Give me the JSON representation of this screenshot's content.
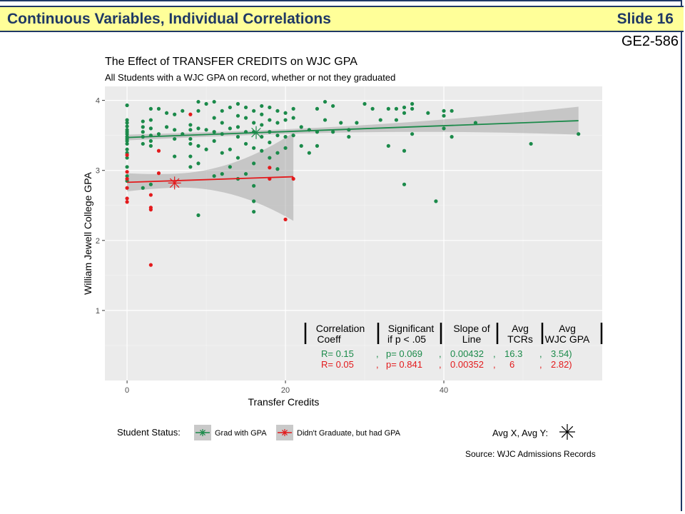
{
  "slide": {
    "title": "Continuous Variables, Individual Correlations",
    "number": "Slide 16",
    "code": "GE2-586"
  },
  "colors": {
    "banner": "#ffff99",
    "banner_text": "#1f3864",
    "grad": "#1b8a4a",
    "nongrad": "#e31a1c",
    "panel": "#ebebeb"
  },
  "chart_data": {
    "type": "scatter",
    "title": "The Effect of TRANSFER CREDITS on WJC GPA",
    "subtitle": "All Students with a WJC GPA on record, whether or not they graduated",
    "xlabel": "Transfer Credits",
    "ylabel": "William Jewell College GPA",
    "xlim": [
      -2.8,
      60
    ],
    "ylim": [
      0.0,
      4.2
    ],
    "xticks": [
      0,
      20,
      40
    ],
    "yticks": [
      1,
      2,
      3,
      4
    ],
    "grid": true,
    "legend_title": "Student Status:",
    "legend_position": "bottom",
    "series": [
      {
        "name": "Grad with GPA",
        "color": "#1b8a4a",
        "points": [
          [
            0,
            3.93
          ],
          [
            0,
            3.72
          ],
          [
            0,
            3.68
          ],
          [
            0,
            3.63
          ],
          [
            0,
            3.58
          ],
          [
            0,
            3.55
          ],
          [
            0,
            3.52
          ],
          [
            0,
            3.48
          ],
          [
            0,
            3.45
          ],
          [
            0,
            3.42
          ],
          [
            0,
            3.38
          ],
          [
            0,
            3.3
          ],
          [
            0,
            3.25
          ],
          [
            0,
            3.18
          ],
          [
            0,
            3.05
          ],
          [
            0,
            2.92
          ],
          [
            0,
            2.85
          ],
          [
            2,
            3.7
          ],
          [
            2,
            3.62
          ],
          [
            2,
            3.55
          ],
          [
            2,
            3.48
          ],
          [
            2,
            3.38
          ],
          [
            2,
            2.75
          ],
          [
            3,
            3.88
          ],
          [
            3,
            3.72
          ],
          [
            3,
            3.6
          ],
          [
            3,
            3.5
          ],
          [
            3,
            3.42
          ],
          [
            3,
            3.35
          ],
          [
            3,
            2.8
          ],
          [
            4,
            3.88
          ],
          [
            4,
            3.52
          ],
          [
            5,
            3.82
          ],
          [
            5,
            3.62
          ],
          [
            6,
            3.8
          ],
          [
            6,
            3.58
          ],
          [
            6,
            3.45
          ],
          [
            6,
            3.2
          ],
          [
            7,
            3.85
          ],
          [
            7,
            3.52
          ],
          [
            8,
            3.65
          ],
          [
            8,
            3.58
          ],
          [
            8,
            3.45
          ],
          [
            8,
            3.38
          ],
          [
            8,
            3.2
          ],
          [
            8,
            3.05
          ],
          [
            9,
            3.98
          ],
          [
            9,
            3.85
          ],
          [
            9,
            3.6
          ],
          [
            9,
            3.35
          ],
          [
            9,
            3.1
          ],
          [
            10,
            3.95
          ],
          [
            10,
            3.58
          ],
          [
            10,
            3.3
          ],
          [
            11,
            3.98
          ],
          [
            11,
            3.75
          ],
          [
            11,
            3.55
          ],
          [
            11,
            3.42
          ],
          [
            11,
            2.92
          ],
          [
            12,
            3.85
          ],
          [
            12,
            3.68
          ],
          [
            12,
            3.52
          ],
          [
            12,
            3.25
          ],
          [
            12,
            2.95
          ],
          [
            13,
            3.9
          ],
          [
            13,
            3.6
          ],
          [
            13,
            3.3
          ],
          [
            13,
            3.05
          ],
          [
            14,
            3.95
          ],
          [
            14,
            3.78
          ],
          [
            14,
            3.62
          ],
          [
            14,
            3.48
          ],
          [
            14,
            3.18
          ],
          [
            14,
            2.88
          ],
          [
            15,
            3.9
          ],
          [
            15,
            3.75
          ],
          [
            15,
            3.55
          ],
          [
            15,
            3.38
          ],
          [
            15,
            2.95
          ],
          [
            16,
            3.85
          ],
          [
            16,
            3.68
          ],
          [
            16,
            3.55
          ],
          [
            16,
            3.32
          ],
          [
            16,
            3.1
          ],
          [
            16,
            2.78
          ],
          [
            17,
            3.92
          ],
          [
            17,
            3.8
          ],
          [
            17,
            3.65
          ],
          [
            17,
            3.48
          ],
          [
            17,
            3.28
          ],
          [
            18,
            3.9
          ],
          [
            18,
            3.72
          ],
          [
            18,
            3.55
          ],
          [
            18,
            3.4
          ],
          [
            18,
            3.18
          ],
          [
            19,
            3.85
          ],
          [
            19,
            3.68
          ],
          [
            19,
            3.5
          ],
          [
            19,
            3.25
          ],
          [
            19,
            3.02
          ],
          [
            20,
            3.82
          ],
          [
            20,
            3.72
          ],
          [
            20,
            3.48
          ],
          [
            20,
            3.32
          ],
          [
            21,
            3.88
          ],
          [
            21,
            3.75
          ],
          [
            21,
            3.5
          ],
          [
            9,
            2.36
          ],
          [
            16,
            2.56
          ],
          [
            16,
            2.41
          ],
          [
            22,
            3.62
          ],
          [
            22,
            3.35
          ],
          [
            23,
            3.58
          ],
          [
            23,
            3.25
          ],
          [
            24,
            3.88
          ],
          [
            24,
            3.55
          ],
          [
            24,
            3.35
          ],
          [
            25,
            3.98
          ],
          [
            25,
            3.72
          ],
          [
            26,
            3.92
          ],
          [
            26,
            3.55
          ],
          [
            27,
            3.68
          ],
          [
            28,
            3.58
          ],
          [
            28,
            3.48
          ],
          [
            29,
            3.68
          ],
          [
            30,
            3.95
          ],
          [
            31,
            3.88
          ],
          [
            32,
            3.72
          ],
          [
            33,
            3.88
          ],
          [
            33,
            3.35
          ],
          [
            34,
            3.88
          ],
          [
            34,
            3.72
          ],
          [
            35,
            3.9
          ],
          [
            35,
            3.82
          ],
          [
            35,
            3.28
          ],
          [
            35,
            2.8
          ],
          [
            36,
            3.95
          ],
          [
            36,
            3.88
          ],
          [
            36,
            3.52
          ],
          [
            38,
            3.82
          ],
          [
            39,
            2.56
          ],
          [
            40,
            3.85
          ],
          [
            40,
            3.78
          ],
          [
            40,
            3.6
          ],
          [
            41,
            3.48
          ],
          [
            41,
            3.85
          ],
          [
            44,
            3.68
          ],
          [
            51,
            3.38
          ],
          [
            57,
            3.52
          ]
        ],
        "avg": [
          16.3,
          3.54
        ],
        "fit": {
          "x": [
            0,
            57
          ],
          "y": [
            3.47,
            3.71
          ],
          "ci_lo": [
            3.38,
            3.52
          ],
          "ci_hi": [
            3.56,
            3.92
          ]
        }
      },
      {
        "name": "Didn't Graduate, but had GPA",
        "color": "#e31a1c",
        "points": [
          [
            0,
            3.22
          ],
          [
            0,
            2.98
          ],
          [
            0,
            2.88
          ],
          [
            0,
            2.75
          ],
          [
            0,
            2.6
          ],
          [
            0,
            2.55
          ],
          [
            3,
            2.65
          ],
          [
            3,
            2.47
          ],
          [
            3,
            2.44
          ],
          [
            3,
            1.65
          ],
          [
            4,
            2.96
          ],
          [
            4,
            3.28
          ],
          [
            8,
            3.8
          ],
          [
            18,
            3.04
          ],
          [
            18,
            2.88
          ],
          [
            20,
            2.3
          ],
          [
            21,
            2.88
          ]
        ],
        "avg": [
          6,
          2.82
        ],
        "fit": {
          "x": [
            0,
            21
          ],
          "y": [
            2.83,
            2.91
          ],
          "ci_lo": [
            2.55,
            2.28
          ],
          "ci_hi": [
            3.12,
            3.54
          ]
        }
      }
    ],
    "stats_table": {
      "headers": [
        [
          "Correlation",
          "Coeff"
        ],
        [
          "Significant",
          "if p < .05"
        ],
        [
          "Slope of",
          "Line"
        ],
        [
          "Avg",
          "TCRs"
        ],
        [
          "Avg",
          "WJC GPA"
        ]
      ],
      "rows": [
        {
          "color": "#1b8a4a",
          "cells": [
            "R= 0.15",
            ",",
            "p= 0.069",
            ",",
            "0.00432",
            ",",
            "16.3",
            ",",
            "3.54)"
          ]
        },
        {
          "color": "#e31a1c",
          "cells": [
            "R= 0.05",
            ",",
            "p= 0.841",
            ",",
            "0.00352",
            ",",
            "6",
            ",",
            "2.82)"
          ]
        }
      ]
    },
    "avg_marker_label": "Avg X, Avg Y:",
    "source": "Source: WJC Admissions Records"
  }
}
